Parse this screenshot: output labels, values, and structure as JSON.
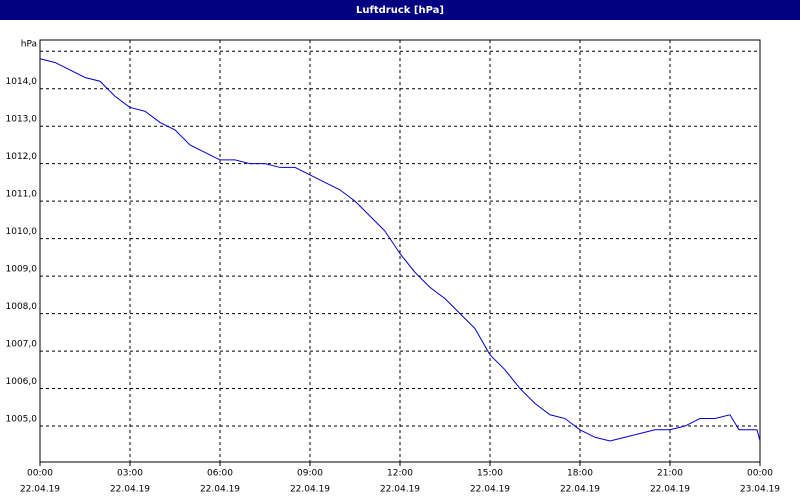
{
  "chart_data": {
    "type": "line",
    "title": "Luftdruck [hPa]",
    "x": [
      0,
      0.5,
      1,
      1.5,
      2,
      2.5,
      3,
      3.5,
      4,
      4.5,
      5,
      5.5,
      6,
      6.5,
      7,
      7.5,
      8,
      8.5,
      9,
      9.5,
      10,
      10.5,
      11,
      11.5,
      12,
      12.5,
      13,
      13.5,
      14,
      14.5,
      15,
      15.5,
      16,
      16.5,
      17,
      17.5,
      18,
      18.5,
      19,
      19.5,
      20,
      20.5,
      21,
      21.5,
      22,
      22.5,
      23,
      23.3,
      23.6,
      23.9,
      24
    ],
    "series": [
      {
        "name": "Luftdruck",
        "color": "#0000cc",
        "values": [
          1014.8,
          1014.7,
          1014.5,
          1014.3,
          1014.2,
          1013.8,
          1013.5,
          1013.4,
          1013.1,
          1012.9,
          1012.5,
          1012.3,
          1012.1,
          1012.1,
          1012.0,
          1012.0,
          1011.9,
          1011.9,
          1011.7,
          1011.5,
          1011.3,
          1011.0,
          1010.6,
          1010.2,
          1009.6,
          1009.1,
          1008.7,
          1008.4,
          1008.0,
          1007.6,
          1006.9,
          1006.5,
          1006.0,
          1005.6,
          1005.3,
          1005.2,
          1004.9,
          1004.7,
          1004.6,
          1004.7,
          1004.8,
          1004.9,
          1004.9,
          1005.0,
          1005.2,
          1005.2,
          1005.3,
          1004.9,
          1004.9,
          1004.9,
          1004.6
        ]
      }
    ],
    "xlim": [
      0,
      24
    ],
    "xticks": [
      {
        "value": 0,
        "label": "00:00"
      },
      {
        "value": 3,
        "label": "03:00"
      },
      {
        "value": 6,
        "label": "06:00"
      },
      {
        "value": 9,
        "label": "09:00"
      },
      {
        "value": 12,
        "label": "12:00"
      },
      {
        "value": 15,
        "label": "15:00"
      },
      {
        "value": 18,
        "label": "18:00"
      },
      {
        "value": 21,
        "label": "21:00"
      },
      {
        "value": 24,
        "label": "00:00"
      }
    ],
    "xtick_dates": [
      "22.04.19",
      "22.04.19",
      "22.04.19",
      "22.04.19",
      "22.04.19",
      "22.04.19",
      "22.04.19",
      "22.04.19",
      "23.04.19"
    ],
    "ylim": [
      1004.04,
      1015.3
    ],
    "yticks": [
      {
        "value": 1005,
        "label": "1005,0"
      },
      {
        "value": 1006,
        "label": "1006,0"
      },
      {
        "value": 1007,
        "label": "1007,0"
      },
      {
        "value": 1008,
        "label": "1008,0"
      },
      {
        "value": 1009,
        "label": "1009,0"
      },
      {
        "value": 1010,
        "label": "1010,0"
      },
      {
        "value": 1011,
        "label": "1011,0"
      },
      {
        "value": 1012,
        "label": "1012,0"
      },
      {
        "value": 1013,
        "label": "1013,0"
      },
      {
        "value": 1014,
        "label": "1014,0"
      },
      {
        "value": 1015,
        "label": "hPa"
      }
    ],
    "grid": true
  }
}
